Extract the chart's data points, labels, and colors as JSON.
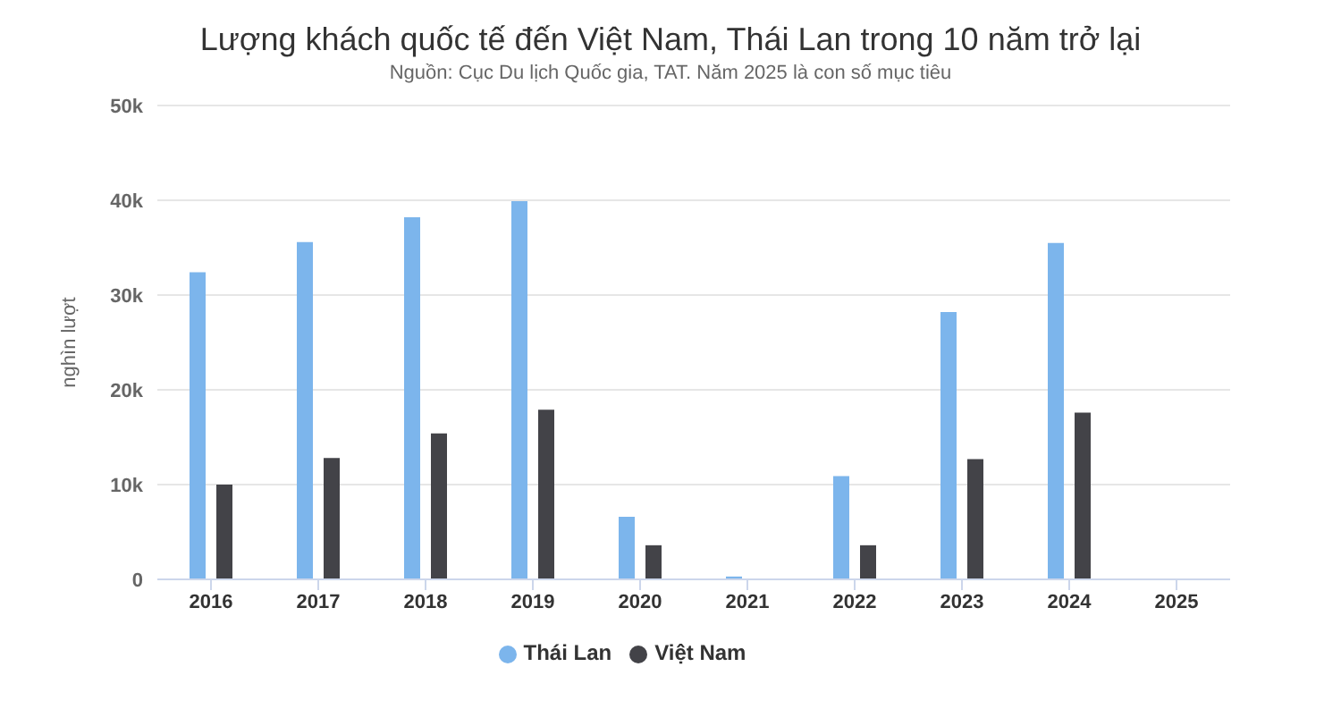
{
  "chart_data": {
    "type": "bar",
    "title": "Lượng khách quốc tế đến Việt Nam, Thái Lan trong 10 năm trở lại",
    "subtitle": "Nguồn: Cục Du lịch Quốc gia, TAT. Năm 2025 là con số mục tiêu",
    "ylabel": "nghìn lượt",
    "categories": [
      "2016",
      "2017",
      "2018",
      "2019",
      "2020",
      "2021",
      "2022",
      "2023",
      "2024",
      "2025"
    ],
    "series": [
      {
        "name": "Thái Lan",
        "color": "#7cb5ec",
        "values": [
          32400,
          35600,
          38200,
          39900,
          6600,
          300,
          10900,
          28200,
          35500,
          null
        ]
      },
      {
        "name": "Việt Nam",
        "color": "#434348",
        "values": [
          10000,
          12800,
          15400,
          17900,
          3600,
          0,
          3600,
          12700,
          17600,
          null
        ]
      }
    ],
    "ylim": [
      0,
      50000
    ],
    "yticks": [
      0,
      {
        "value": 10000,
        "label": "10k"
      },
      {
        "value": 20000,
        "label": "20k"
      },
      {
        "value": 30000,
        "label": "30k"
      },
      {
        "value": 40000,
        "label": "40k"
      },
      {
        "value": 50000,
        "label": "50k"
      }
    ],
    "grid": "y",
    "legend": "bottom"
  }
}
